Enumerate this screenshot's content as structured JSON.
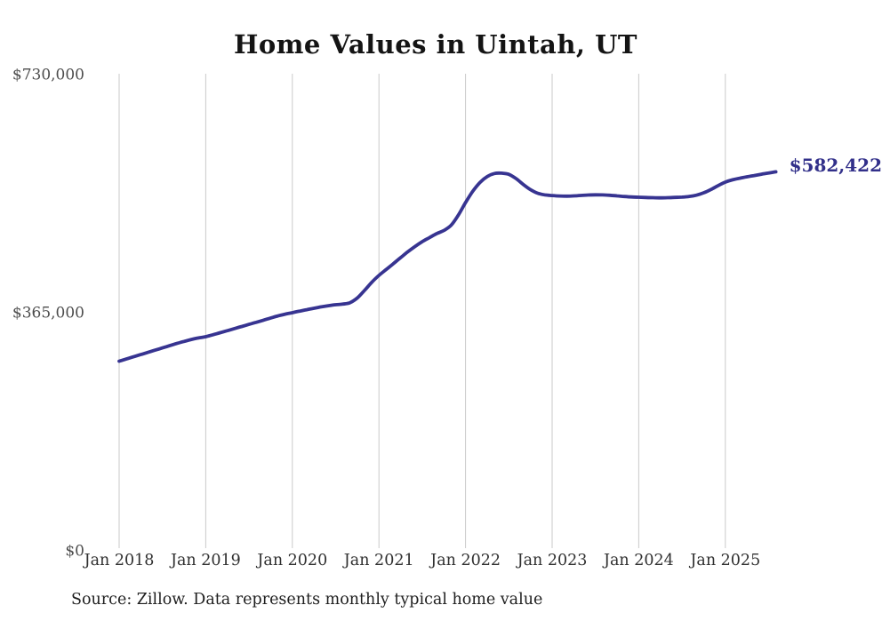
{
  "page": {
    "title": "Home Values in Uintah, UT",
    "source": "Source: Zillow. Data represents monthly typical home value"
  },
  "chart_data": {
    "type": "line",
    "title": "Home Values in Uintah, UT",
    "xlabel": "",
    "ylabel": "",
    "ylim": [
      0,
      730000
    ],
    "grid": "vertical-only",
    "grid_color": "#cacaca",
    "line_color": "#373491",
    "end_label": "$582,422",
    "end_value": 582422,
    "x_tick_labels": [
      "Jan 2018",
      "Jan 2019",
      "Jan 2020",
      "Jan 2021",
      "Jan 2022",
      "Jan 2023",
      "Jan 2024",
      "Jan 2025"
    ],
    "y_ticks": [
      {
        "value": 730000,
        "label": "$730,000"
      },
      {
        "value": 365000,
        "label": "$365,000"
      },
      {
        "value": 0,
        "label": "$0"
      }
    ],
    "series": [
      {
        "name": "Typical home value",
        "x_start": "2018-01",
        "x_interval": "month",
        "values": [
          292000,
          295400,
          298800,
          302200,
          305600,
          309000,
          312400,
          315800,
          319200,
          322400,
          325300,
          327700,
          329600,
          332600,
          335700,
          338900,
          342100,
          345300,
          348500,
          351700,
          354900,
          358300,
          361500,
          364200,
          366400,
          368700,
          371000,
          373200,
          375300,
          377100,
          378600,
          379600,
          381800,
          389000,
          400500,
          413000,
          423600,
          432500,
          441500,
          450800,
          459800,
          468000,
          475300,
          481500,
          487600,
          492500,
          500500,
          516000,
          535200,
          552500,
          566000,
          575000,
          579800,
          580300,
          578500,
          572000,
          563000,
          555000,
          549500,
          547000,
          546000,
          545300,
          545000,
          545400,
          546100,
          546800,
          547100,
          547000,
          546400,
          545500,
          544500,
          543800,
          543400,
          543000,
          542700,
          542500,
          542700,
          543100,
          543600,
          544600,
          546500,
          550200,
          555200,
          561200,
          566600,
          570100,
          572600,
          574700,
          576700,
          578700,
          580500,
          582422
        ]
      }
    ]
  }
}
